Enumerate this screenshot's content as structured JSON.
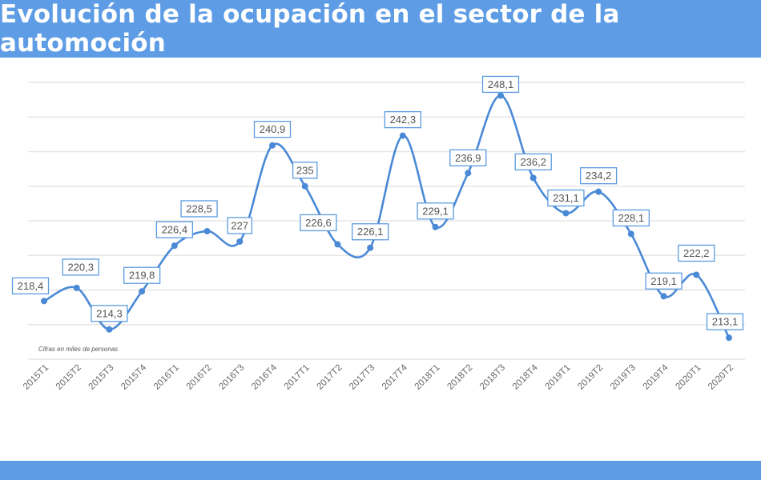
{
  "header": {
    "title": "Evolución de la ocupación en el sector de la automoción"
  },
  "chart_data": {
    "type": "line",
    "title": "Evolución de la ocupación en el sector de la automoción",
    "note": "Cifras en miles de personas",
    "categories": [
      "2015T1",
      "2015T2",
      "2015T3",
      "2015T4",
      "2016T1",
      "2016T2",
      "2016T3",
      "2016T4",
      "2017T1",
      "2017T2",
      "2017T3",
      "2017T4",
      "2018T1",
      "2018T2",
      "2018T3",
      "2018T4",
      "2019T1",
      "2019T2",
      "2019T3",
      "2019T4",
      "2020T1",
      "2020T2"
    ],
    "values": [
      218.4,
      220.3,
      214.3,
      219.8,
      226.4,
      228.5,
      227,
      240.9,
      235,
      226.6,
      226.1,
      242.3,
      229.1,
      236.9,
      248.1,
      236.2,
      231.1,
      234.2,
      228.1,
      219.1,
      222.2,
      213.1
    ],
    "value_labels": [
      "218,4",
      "220,3",
      "214,3",
      "219,8",
      "226,4",
      "228,5",
      "227",
      "240,9",
      "235",
      "226,6",
      "226,1",
      "242,3",
      "229,1",
      "236,9",
      "248,1",
      "236,2",
      "231,1",
      "234,2",
      "228,1",
      "219,1",
      "222,2",
      "213,1"
    ],
    "ylim": [
      210,
      250
    ],
    "ytick_step": 5,
    "grid": true,
    "legend": "none",
    "line_color": "#4a89d6"
  }
}
